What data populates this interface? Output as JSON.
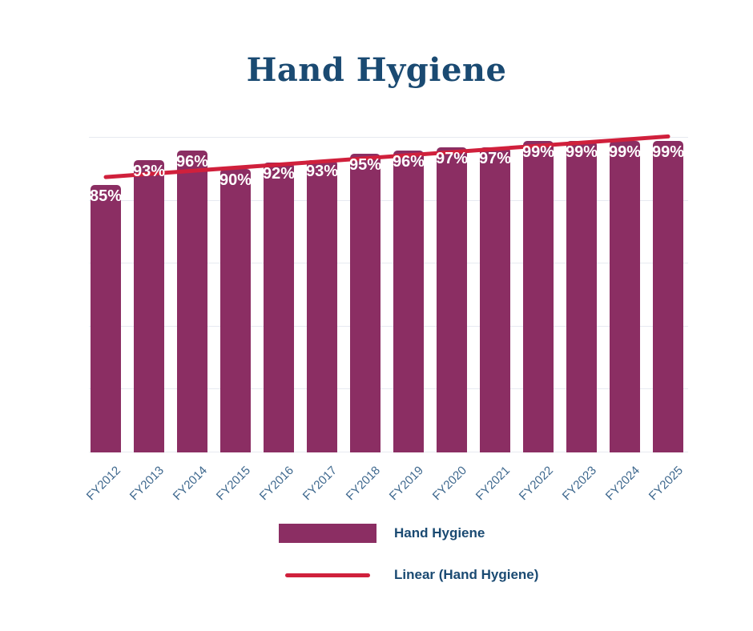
{
  "title": "Hand Hygiene",
  "colors": {
    "bar": "#8B2E63",
    "trend_line": "#D0203C",
    "title_text": "#1A4A72",
    "axis_label_text": "#3E688E",
    "bar_label_text": "#FFFFFF",
    "gridline": "#E7EAF1",
    "background": "#FFFFFF"
  },
  "legend": {
    "items": [
      {
        "swatch": "bar",
        "label": "Hand Hygiene"
      },
      {
        "swatch": "line",
        "label": "Linear (Hand Hygiene)"
      }
    ]
  },
  "chart_data": {
    "type": "bar",
    "title": "Hand Hygiene",
    "categories": [
      "FY2012",
      "FY2013",
      "FY2014",
      "FY2015",
      "FY2016",
      "FY2017",
      "FY2018",
      "FY2019",
      "FY2020",
      "FY2021",
      "FY2022",
      "FY2023",
      "FY2024",
      "FY2025"
    ],
    "series": [
      {
        "name": "Hand Hygiene",
        "type": "bar",
        "values": [
          85,
          93,
          96,
          90,
          92,
          93,
          95,
          96,
          97,
          97,
          99,
          99,
          99,
          99
        ],
        "data_labels": [
          "85%",
          "93%",
          "96%",
          "90%",
          "92%",
          "93%",
          "95%",
          "96%",
          "97%",
          "97%",
          "99%",
          "99%",
          "99%",
          "99%"
        ]
      }
    ],
    "trendline": {
      "name": "Linear (Hand Hygiene)",
      "start_pct": 87.5,
      "end_pct": 100.4
    },
    "xlabel": "",
    "ylabel": "",
    "ylim": [
      0,
      100
    ],
    "gridlines": {
      "show": true,
      "interval_pct": 20
    },
    "x_tick_rotation_deg": -45,
    "legend_position": "bottom"
  }
}
